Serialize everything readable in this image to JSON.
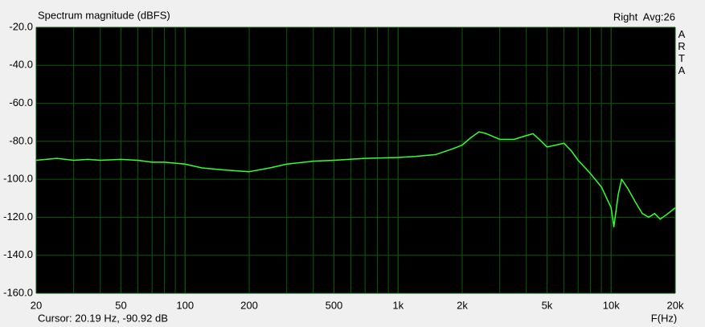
{
  "chart_data": {
    "type": "line",
    "title": "Spectrum magnitude (dBFS)",
    "channel_label": "Right  Avg:26",
    "brand": "ARTA",
    "cursor_readout": "Cursor: 20.19 Hz, -90.92 dB",
    "x_label": "F(Hz)",
    "x_scale": "log",
    "xlim": [
      20,
      20000
    ],
    "ylim": [
      -160,
      -20
    ],
    "xticks": [
      20,
      50,
      100,
      200,
      500,
      {
        "value": 1000,
        "label": "1k"
      },
      {
        "value": 2000,
        "label": "2k"
      },
      {
        "value": 5000,
        "label": "5k"
      },
      {
        "value": 10000,
        "label": "10k"
      },
      {
        "value": 20000,
        "label": "20k"
      }
    ],
    "yticks": [
      {
        "value": -20,
        "label": "-20.0"
      },
      {
        "value": -40,
        "label": "-40.0"
      },
      {
        "value": -60,
        "label": "-60.0"
      },
      {
        "value": -80,
        "label": "-80.0"
      },
      {
        "value": -100,
        "label": "-100.0"
      },
      {
        "value": -120,
        "label": "-120.0"
      },
      {
        "value": -140,
        "label": "-140.0"
      },
      {
        "value": -160,
        "label": "-160.0"
      }
    ],
    "grid": true,
    "minor_grid": true,
    "color": "#33ff33",
    "x": [
      20,
      25,
      30,
      35,
      40,
      50,
      60,
      70,
      80,
      100,
      120,
      150,
      200,
      250,
      300,
      400,
      500,
      700,
      1000,
      1200,
      1500,
      1800,
      2000,
      2200,
      2400,
      2600,
      3000,
      3500,
      4000,
      4300,
      4700,
      5000,
      5500,
      6000,
      6500,
      7000,
      8000,
      9000,
      10000,
      10300,
      10800,
      11200,
      12000,
      13000,
      14000,
      15000,
      16000,
      17000,
      18000,
      19000,
      20000
    ],
    "values": [
      -90,
      -89,
      -90,
      -89.5,
      -90,
      -89.5,
      -90,
      -91,
      -91,
      -92,
      -94,
      -95,
      -96,
      -94,
      -92,
      -90.5,
      -90,
      -89,
      -88.5,
      -88,
      -87,
      -84,
      -82,
      -78,
      -75,
      -76,
      -79,
      -79,
      -77,
      -76,
      -80,
      -83,
      -82,
      -81,
      -85,
      -90,
      -97,
      -104,
      -115,
      -125,
      -108,
      -100,
      -105,
      -112,
      -118,
      -120,
      -118,
      -121,
      -119,
      -117,
      -115
    ]
  }
}
